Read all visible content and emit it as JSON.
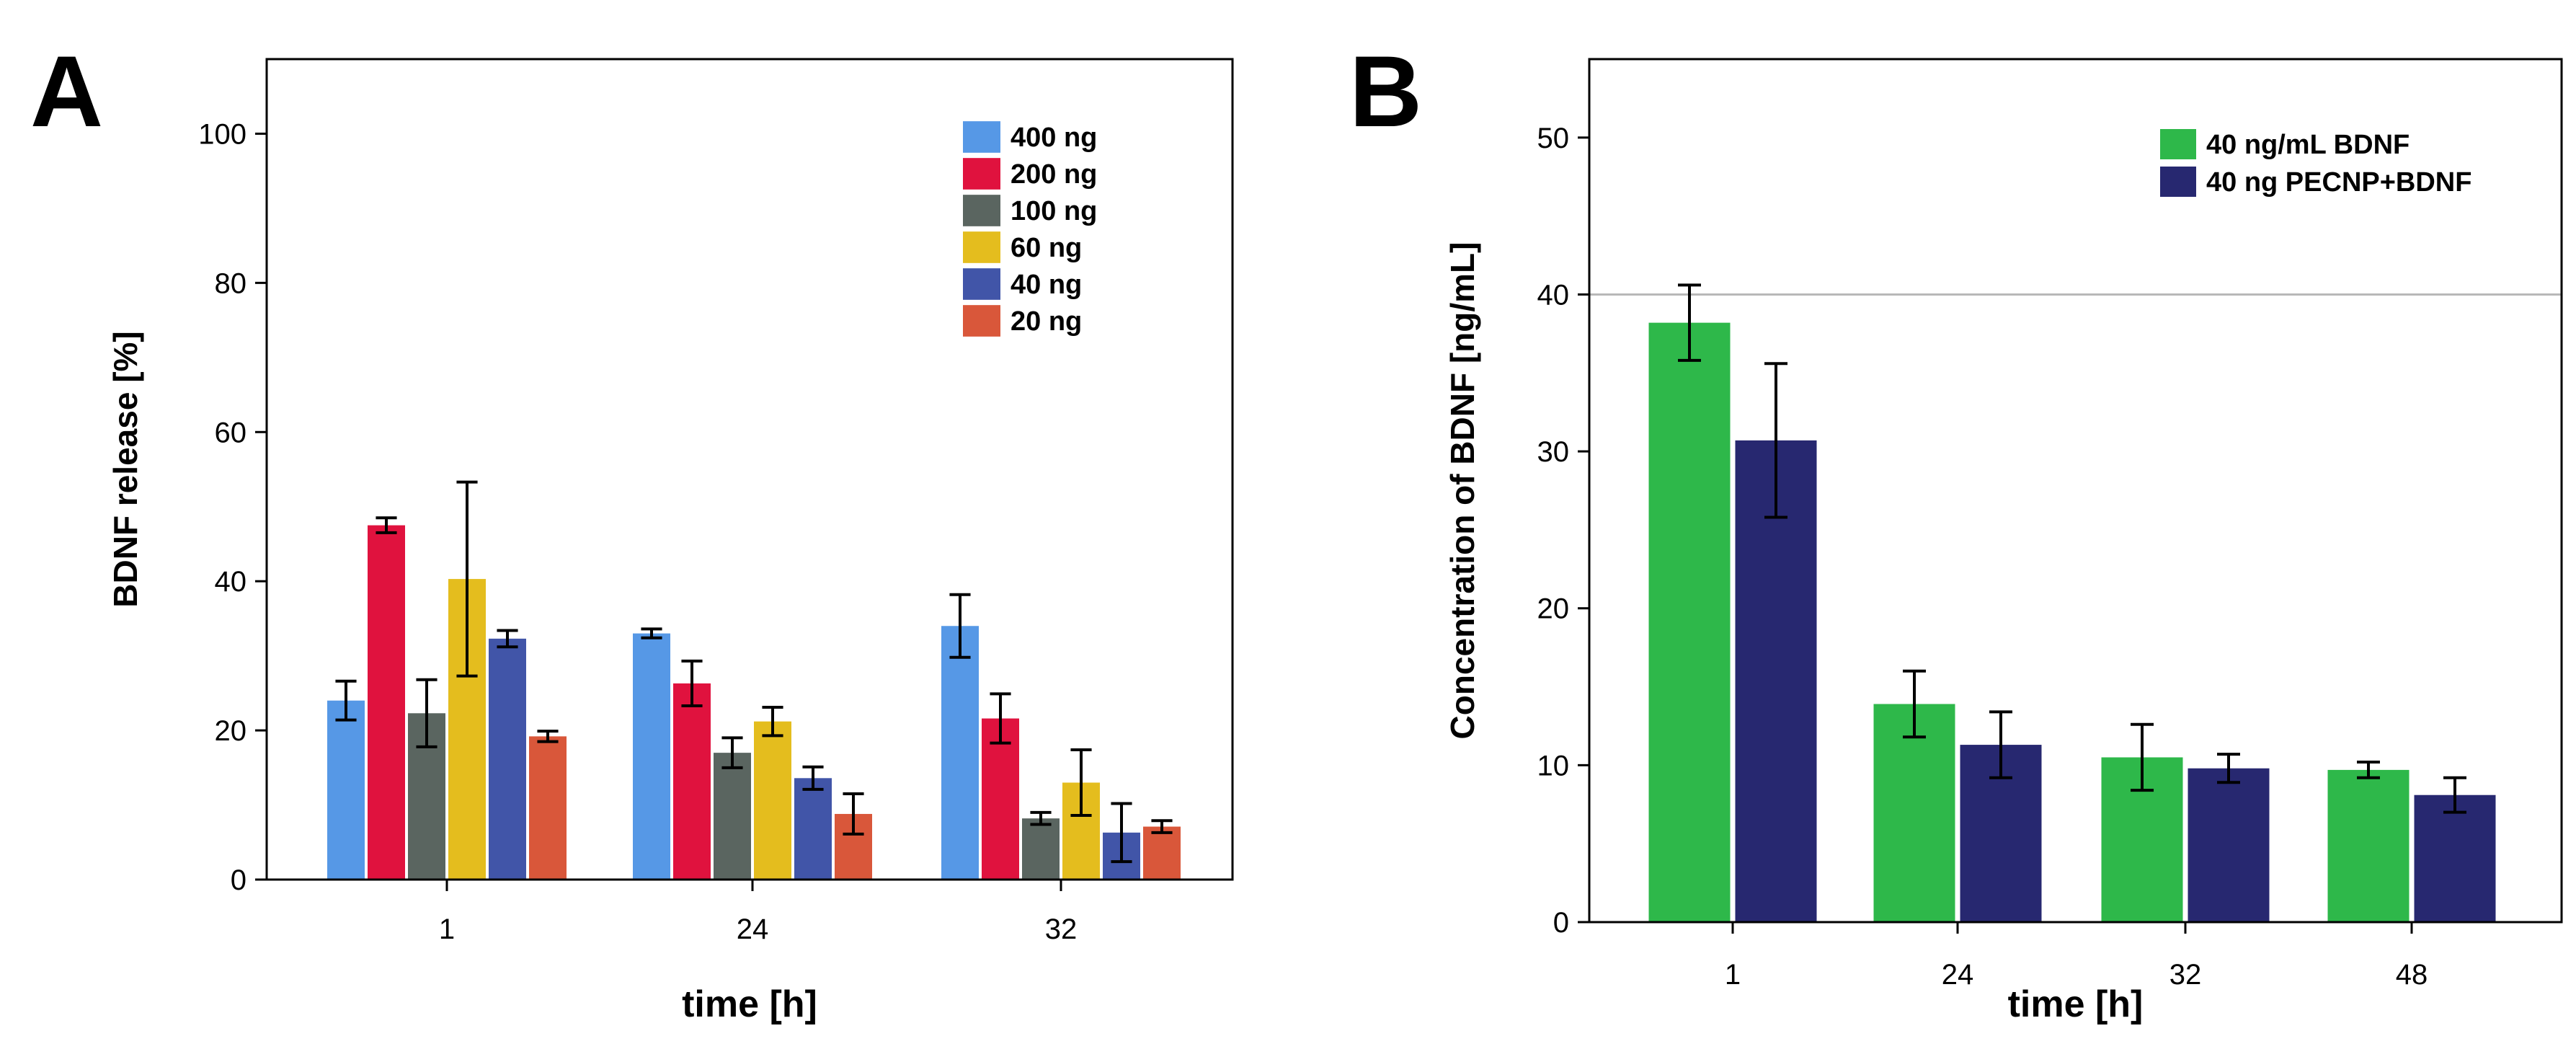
{
  "chart_data": [
    {
      "panel_label": "A",
      "type": "bar",
      "categories": [
        "1",
        "24",
        "32"
      ],
      "xlabel": "time [h]",
      "ylabel": "BDNF release [%]",
      "ylim": [
        0,
        110
      ],
      "yticks": [
        0,
        20,
        40,
        60,
        80,
        100
      ],
      "grid": false,
      "reference_line": null,
      "legend_position": "top-right",
      "series": [
        {
          "name": "400 ng",
          "color": "#5698E6",
          "values": [
            24,
            33,
            34
          ],
          "errors": [
            2.6,
            0.6,
            4.2
          ]
        },
        {
          "name": "200 ng",
          "color": "#E0123E",
          "values": [
            47.5,
            26.3,
            21.6
          ],
          "errors": [
            1.0,
            3.0,
            3.3
          ]
        },
        {
          "name": "100 ng",
          "color": "#5A6560",
          "values": [
            22.3,
            17,
            8.2
          ],
          "errors": [
            4.5,
            2.0,
            0.8
          ]
        },
        {
          "name": "60 ng",
          "color": "#E4BD1E",
          "values": [
            40.3,
            21.2,
            13
          ],
          "errors": [
            13,
            1.9,
            4.4
          ]
        },
        {
          "name": "40 ng",
          "color": "#4155A8",
          "values": [
            32.3,
            13.6,
            6.3
          ],
          "errors": [
            1.1,
            1.5,
            3.9
          ]
        },
        {
          "name": "20 ng",
          "color": "#D9573A",
          "values": [
            19.2,
            8.8,
            7.1
          ],
          "errors": [
            0.7,
            2.7,
            0.8
          ]
        }
      ]
    },
    {
      "panel_label": "B",
      "type": "bar",
      "categories": [
        "1",
        "24",
        "32",
        "48"
      ],
      "xlabel": "time [h]",
      "ylabel": "Concentration of BDNF [ng/mL]",
      "ylim": [
        0,
        55
      ],
      "yticks": [
        0,
        10,
        20,
        30,
        40,
        50
      ],
      "grid": false,
      "reference_line": 40,
      "legend_position": "top-right",
      "series": [
        {
          "name": "40 ng/mL BDNF",
          "color": "#2EB84A",
          "values": [
            38.2,
            13.9,
            10.5,
            9.7
          ],
          "errors": [
            2.4,
            2.1,
            2.1,
            0.5
          ]
        },
        {
          "name": "40 ng PECNP+BDNF",
          "color": "#272870",
          "values": [
            30.7,
            11.3,
            9.8,
            8.1
          ],
          "errors": [
            4.9,
            2.1,
            0.9,
            1.1
          ]
        }
      ]
    }
  ]
}
